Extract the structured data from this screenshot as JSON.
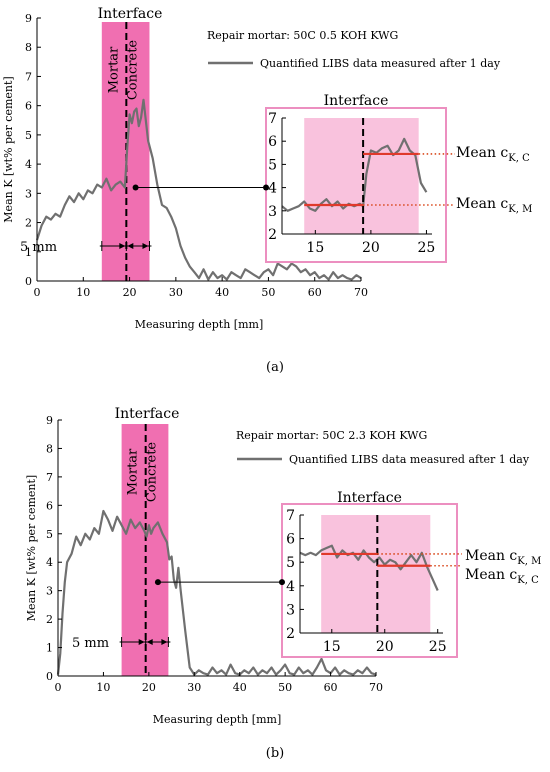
{
  "figure": {
    "caption_a": "(a)",
    "caption_b": "(b)"
  },
  "colors": {
    "band": "#f06fb1",
    "inset_band": "#f9c2dd",
    "inset_border": "#ec8fc0",
    "line": "#707070",
    "mean_line": "#e0392b",
    "dotted": "#d9481c"
  },
  "chart_data": [
    {
      "type": "line",
      "panel": "a",
      "title": "Repair mortar: 50C 0.5 KOH KWG",
      "legend": "Quantified LIBS data measured after 1 day",
      "legend_placement": "top-right",
      "xlabel": "Measuring depth [mm]",
      "ylabel": "Mean K [wt% per cement]",
      "xlim": [
        0,
        70
      ],
      "ylim": [
        0,
        9
      ],
      "xticks": [
        0,
        10,
        20,
        30,
        40,
        50,
        60,
        70
      ],
      "yticks": [
        0,
        1,
        2,
        3,
        4,
        5,
        6,
        7,
        8,
        9
      ],
      "grid": false,
      "interface_label": "Interface",
      "interface_x": 19.3,
      "band": [
        14,
        24.3
      ],
      "zone_labels": [
        "Mortar",
        "Concrete"
      ],
      "width_label": "5 mm",
      "x": [
        0,
        1,
        2,
        3,
        4,
        5,
        6,
        7,
        8,
        9,
        10,
        11,
        12,
        13,
        14,
        15,
        16,
        17,
        18,
        19,
        19.5,
        20,
        20.5,
        21,
        21.5,
        22,
        22.5,
        23,
        23.5,
        24,
        25,
        26,
        27,
        28,
        29,
        30,
        31,
        32,
        33,
        34,
        35,
        36,
        37,
        38,
        39,
        40,
        41,
        42,
        43,
        44,
        45,
        46,
        47,
        48,
        49,
        50,
        51,
        52,
        53,
        54,
        55,
        56,
        57,
        58,
        59,
        60,
        61,
        62,
        63,
        64,
        65,
        66,
        67,
        68,
        69,
        70
      ],
      "y": [
        1.4,
        1.9,
        2.2,
        2.1,
        2.3,
        2.2,
        2.6,
        2.9,
        2.7,
        3.0,
        2.8,
        3.1,
        3.0,
        3.3,
        3.2,
        3.5,
        3.1,
        3.3,
        3.4,
        3.2,
        4.6,
        5.7,
        5.4,
        5.8,
        5.9,
        5.3,
        5.6,
        6.2,
        5.5,
        4.8,
        4.2,
        3.3,
        2.6,
        2.5,
        2.2,
        1.8,
        1.2,
        0.8,
        0.5,
        0.3,
        0.1,
        0.4,
        0.05,
        0.3,
        0.1,
        0.2,
        0.05,
        0.3,
        0.2,
        0.1,
        0.4,
        0.3,
        0.2,
        0.1,
        0.3,
        0.4,
        0.2,
        0.6,
        0.5,
        0.4,
        0.6,
        0.5,
        0.3,
        0.4,
        0.2,
        0.3,
        0.1,
        0.2,
        0.05,
        0.3,
        0.1,
        0.2,
        0.1,
        0.05,
        0.2,
        0.1
      ],
      "inset": {
        "title": "Interface",
        "xlim": [
          12,
          25.5
        ],
        "ylim": [
          2,
          7
        ],
        "xticks": [
          15,
          20,
          25
        ],
        "yticks": [
          2,
          3,
          4,
          5,
          6,
          7
        ],
        "band": [
          14,
          24.3
        ],
        "interface_x": 19.3,
        "mean_mortar": 3.25,
        "mean_concrete": 5.45,
        "x": [
          12,
          12.5,
          13,
          13.5,
          14,
          14.5,
          15,
          15.5,
          16,
          16.5,
          17,
          17.5,
          18,
          18.5,
          19,
          19.3,
          19.6,
          20,
          20.5,
          21,
          21.5,
          22,
          22.5,
          23,
          23.5,
          24,
          24.5,
          25
        ],
        "y": [
          3.2,
          3.0,
          3.1,
          3.2,
          3.4,
          3.1,
          3.0,
          3.3,
          3.5,
          3.2,
          3.4,
          3.1,
          3.3,
          3.2,
          3.3,
          3.2,
          4.6,
          5.6,
          5.5,
          5.7,
          5.8,
          5.4,
          5.6,
          6.1,
          5.6,
          5.4,
          4.2,
          3.8
        ],
        "labels": [
          {
            "main": "Mean c",
            "sub": "K, C"
          },
          {
            "main": "Mean c",
            "sub": "K, M"
          }
        ]
      }
    },
    {
      "type": "line",
      "panel": "b",
      "title": "Repair mortar: 50C 2.3 KOH KWG",
      "legend": "Quantified LIBS data measured after 1 day",
      "legend_placement": "top-right",
      "xlabel": "Measuring depth [mm]",
      "ylabel": "Mean K [wt% per cement]",
      "xlim": [
        0,
        70
      ],
      "ylim": [
        0,
        9
      ],
      "xticks": [
        0,
        10,
        20,
        30,
        40,
        50,
        60,
        70
      ],
      "yticks": [
        0,
        1,
        2,
        3,
        4,
        5,
        6,
        7,
        8,
        9
      ],
      "grid": false,
      "interface_label": "Interface",
      "interface_x": 19.3,
      "band": [
        14,
        24.3
      ],
      "zone_labels": [
        "Mortar",
        "Concrete"
      ],
      "width_label": "5 mm",
      "x": [
        0,
        0.5,
        1,
        1.5,
        2,
        3,
        4,
        5,
        6,
        7,
        8,
        9,
        10,
        11,
        12,
        13,
        14,
        15,
        16,
        17,
        18,
        19,
        19.5,
        20,
        20.5,
        21,
        22,
        23,
        24,
        24.5,
        25,
        25.5,
        26,
        26.5,
        27,
        28,
        29,
        30,
        31,
        32,
        33,
        34,
        35,
        36,
        37,
        38,
        39,
        40,
        41,
        42,
        43,
        44,
        45,
        46,
        47,
        48,
        49,
        50,
        51,
        52,
        53,
        54,
        55,
        56,
        57,
        58,
        59,
        60,
        61,
        62,
        63,
        64,
        65,
        66,
        67,
        68,
        69,
        70
      ],
      "y": [
        0.05,
        0.8,
        2.2,
        3.3,
        4.0,
        4.3,
        4.9,
        4.6,
        5.0,
        4.8,
        5.2,
        5.0,
        5.8,
        5.5,
        5.1,
        5.6,
        5.3,
        5.0,
        5.5,
        5.2,
        5.4,
        5.1,
        4.9,
        5.3,
        5.0,
        5.2,
        5.4,
        5.0,
        4.7,
        4.1,
        4.2,
        3.4,
        3.1,
        3.8,
        3.0,
        1.6,
        0.3,
        0.05,
        0.2,
        0.1,
        0.05,
        0.3,
        0.1,
        0.2,
        0.05,
        0.4,
        0.1,
        0.05,
        0.2,
        0.1,
        0.3,
        0.05,
        0.2,
        0.1,
        0.3,
        0.05,
        0.2,
        0.4,
        0.1,
        0.05,
        0.3,
        0.1,
        0.2,
        0.05,
        0.3,
        0.6,
        0.2,
        0.1,
        0.3,
        0.05,
        0.2,
        0.1,
        0.05,
        0.2,
        0.1,
        0.3,
        0.1,
        0.05
      ],
      "inset": {
        "title": "Interface",
        "xlim": [
          12,
          25.5
        ],
        "ylim": [
          2,
          7
        ],
        "xticks": [
          15,
          20,
          25
        ],
        "yticks": [
          2,
          3,
          4,
          5,
          6,
          7
        ],
        "band": [
          14,
          24.3
        ],
        "interface_x": 19.3,
        "mean_mortar": 5.35,
        "mean_concrete": 4.85,
        "x": [
          12,
          12.5,
          13,
          13.5,
          14,
          14.5,
          15,
          15.5,
          16,
          16.5,
          17,
          17.5,
          18,
          18.5,
          19,
          19.5,
          20,
          20.5,
          21,
          21.5,
          22,
          22.5,
          23,
          23.5,
          24,
          24.5,
          25
        ],
        "y": [
          5.4,
          5.3,
          5.4,
          5.3,
          5.5,
          5.6,
          5.7,
          5.2,
          5.5,
          5.3,
          5.4,
          5.1,
          5.5,
          5.2,
          5.0,
          5.2,
          4.9,
          5.1,
          5.0,
          4.7,
          5.0,
          5.3,
          5.0,
          5.4,
          4.8,
          4.3,
          3.8
        ],
        "labels": [
          {
            "main": "Mean c",
            "sub": "K, M"
          },
          {
            "main": "Mean c",
            "sub": "K, C"
          }
        ]
      }
    }
  ]
}
